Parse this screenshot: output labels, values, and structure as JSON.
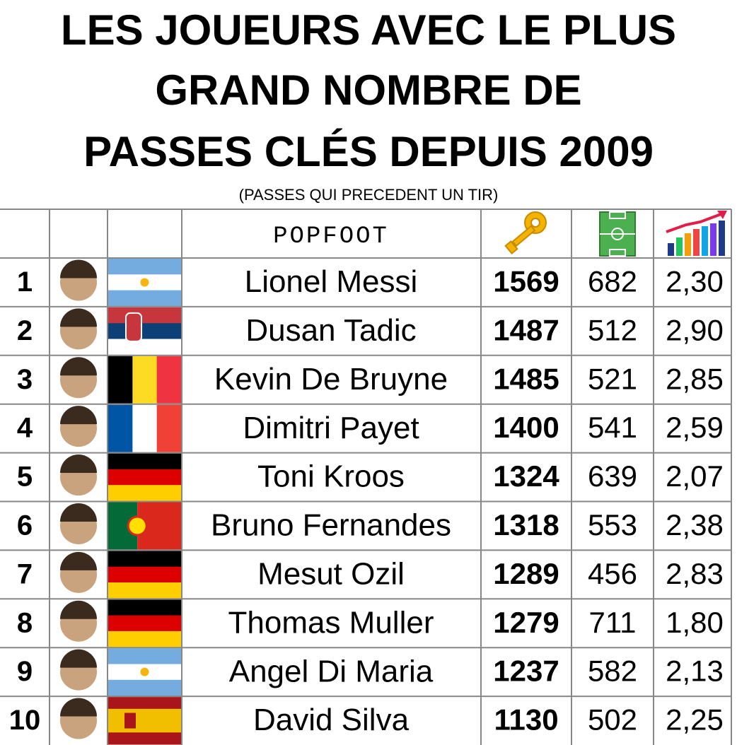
{
  "header": {
    "title_lines": [
      "LES JOUEURS AVEC LE PLUS",
      "GRAND NOMBRE DE",
      "PASSES CLÉS DEPUIS 2009"
    ],
    "subtitle": "(PASSES QUI PRECEDENT UN TIR)",
    "logo": "POPFOOT"
  },
  "table": {
    "rows": [
      [
        "1",
        "Lionel Messi",
        "1569",
        "682",
        "2,30"
      ],
      [
        "2",
        "Dusan Tadic",
        "1487",
        "512",
        "2,90"
      ],
      [
        "3",
        "Kevin De Bruyne",
        "1485",
        "521",
        "2,85"
      ],
      [
        "4",
        "Dimitri Payet",
        "1400",
        "541",
        "2,59"
      ],
      [
        "5",
        "Toni Kroos",
        "1324",
        "639",
        "2,07"
      ],
      [
        "6",
        "Bruno Fernandes",
        "1318",
        "553",
        "2,38"
      ],
      [
        "7",
        "Mesut Ozil",
        "1289",
        "456",
        "2,83"
      ],
      [
        "8",
        "Thomas Muller",
        "1279",
        "711",
        "1,80"
      ],
      [
        "9",
        "Angel Di Maria",
        "1237",
        "582",
        "2,13"
      ],
      [
        "10",
        "David Silva",
        "1130",
        "502",
        "2,25"
      ]
    ]
  }
}
